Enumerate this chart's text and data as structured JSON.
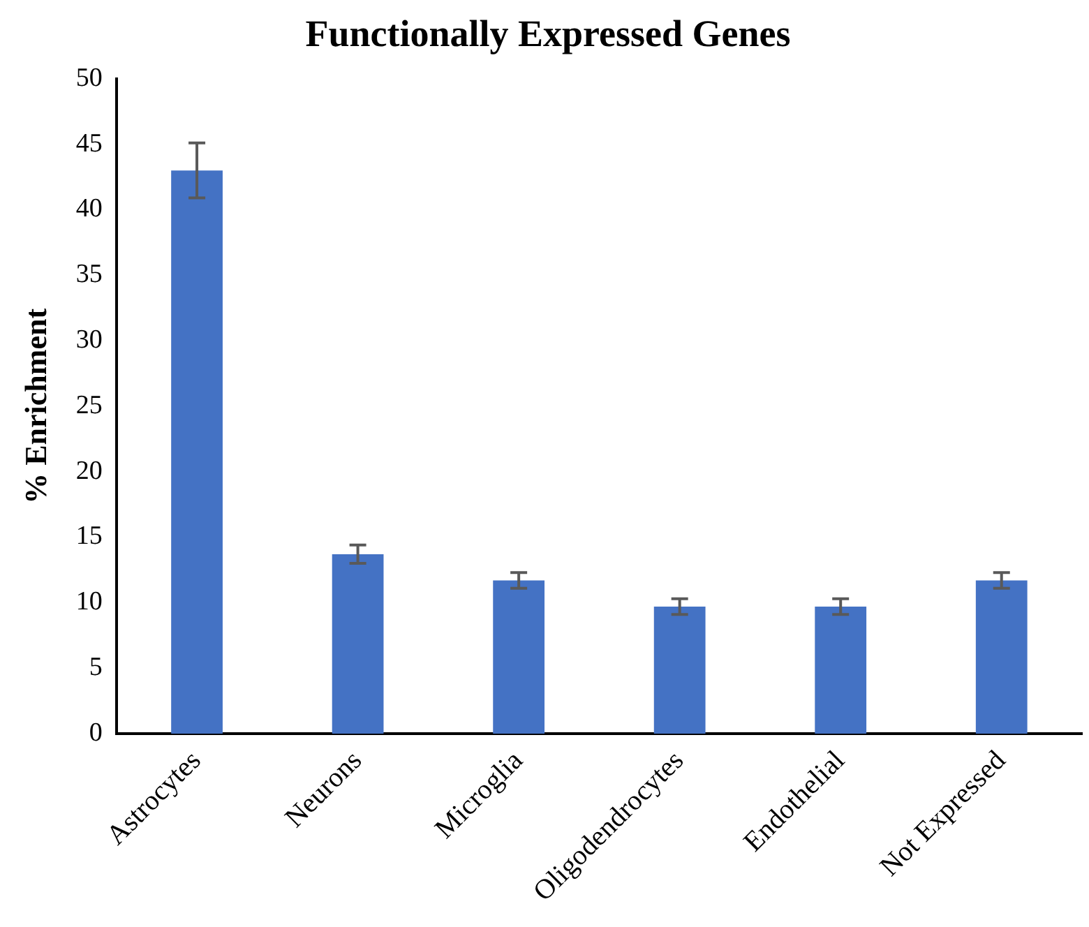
{
  "chart_data": {
    "type": "bar",
    "title": "Functionally Expressed Genes",
    "ylabel": "% Enrichment",
    "categories": [
      "Astrocytes",
      "Neurons",
      "Microglia",
      "Oligodendrocytes",
      "Endothelial",
      "Not Expressed"
    ],
    "values": [
      43.0,
      13.7,
      11.7,
      9.7,
      9.7,
      11.7
    ],
    "errors": [
      2.1,
      0.7,
      0.6,
      0.6,
      0.6,
      0.6
    ],
    "color": "#4472c4",
    "ylim": [
      0,
      50
    ],
    "yticks": [
      0,
      5,
      10,
      15,
      20,
      25,
      30,
      35,
      40,
      45,
      50
    ],
    "grid": false,
    "legend": false
  }
}
